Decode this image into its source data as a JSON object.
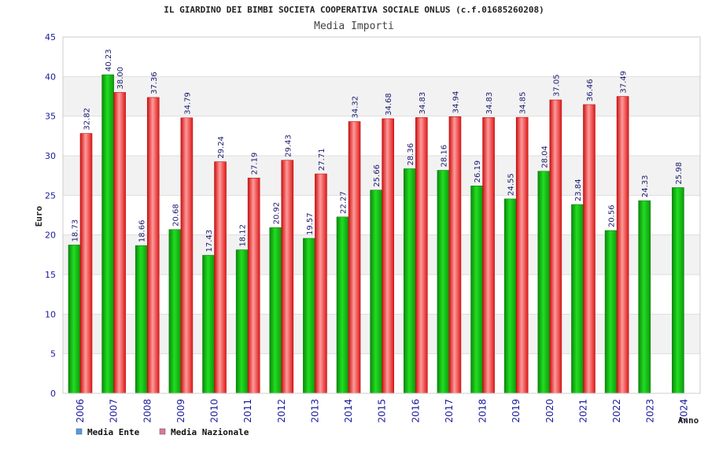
{
  "chart_data": {
    "type": "bar",
    "title": "IL GIARDINO DEI BIMBI SOCIETA COOPERATIVA SOCIALE ONLUS (c.f.01685260208)",
    "subtitle": "Media Importi",
    "xlabel": "Anno",
    "ylabel": "Euro",
    "ylim": [
      0,
      45
    ],
    "yticks": [
      0,
      5,
      10,
      15,
      20,
      25,
      30,
      35,
      40,
      45
    ],
    "grid": true,
    "legend_position": "bottom-left",
    "categories": [
      "2006",
      "2007",
      "2008",
      "2009",
      "2010",
      "2011",
      "2012",
      "2013",
      "2014",
      "2015",
      "2016",
      "2017",
      "2018",
      "2019",
      "2020",
      "2021",
      "2022",
      "2023",
      "2024"
    ],
    "series": [
      {
        "name": "Media Ente",
        "color": "#11bb11",
        "legend_color": "#5599ee",
        "values": [
          18.73,
          40.23,
          18.66,
          20.68,
          17.43,
          18.12,
          20.92,
          19.57,
          22.27,
          25.66,
          28.36,
          28.16,
          26.19,
          24.55,
          28.04,
          23.84,
          20.56,
          24.33,
          25.98
        ],
        "labels": [
          "18.73",
          "40.23",
          "18.66",
          "20.68",
          "17.43",
          "18.12",
          "20.92",
          "19.57",
          "22.27",
          "25.66",
          "28.36",
          "28.16",
          "26.19",
          "24.55",
          "28.04",
          "23.84",
          "20.56",
          "24.33",
          "25.98"
        ]
      },
      {
        "name": "Media Nazionale",
        "color": "#ee2222",
        "legend_color": "#dd7799",
        "values": [
          32.82,
          38.0,
          37.36,
          34.79,
          29.24,
          27.19,
          29.43,
          27.71,
          34.32,
          34.68,
          34.83,
          34.94,
          34.83,
          34.85,
          37.05,
          36.46,
          37.49,
          null,
          null
        ],
        "labels": [
          "32.82",
          "38.00",
          "37.36",
          "34.79",
          "29.24",
          "27.19",
          "29.43",
          "27.71",
          "34.32",
          "34.68",
          "34.83",
          "34.94",
          "34.83",
          "34.85",
          "37.05",
          "36.46",
          "37.49",
          "",
          ""
        ]
      }
    ]
  }
}
